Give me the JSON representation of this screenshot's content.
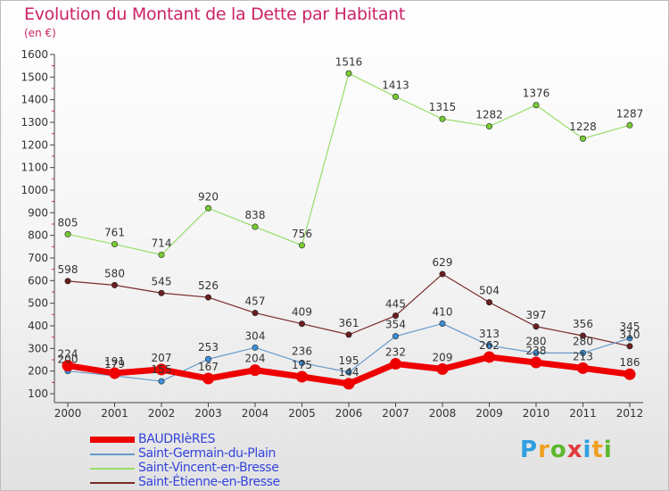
{
  "title": "Evolution du Montant de la Dette par Habitant",
  "subtitle": "(en €)",
  "logo_text": "Proxiti",
  "chart_data": {
    "type": "line",
    "x": [
      2000,
      2001,
      2002,
      2003,
      2004,
      2005,
      2006,
      2007,
      2008,
      2009,
      2010,
      2011,
      2012
    ],
    "ylim": [
      100,
      1600
    ],
    "yticks": [
      100,
      200,
      300,
      400,
      500,
      600,
      700,
      800,
      900,
      1000,
      1100,
      1200,
      1300,
      1400,
      1500,
      1600
    ],
    "grid": "none",
    "legend_position": "bottom-left",
    "series": [
      {
        "name": "BAUDRIèRES",
        "color": "#ee0000",
        "emphasis": true,
        "values": [
          224,
          191,
          207,
          167,
          204,
          175,
          144,
          232,
          209,
          262,
          238,
          213,
          186
        ],
        "labels": [
          "224",
          "191",
          "207",
          "167",
          "204",
          "175",
          "144",
          "232",
          "209",
          "262",
          "238",
          "213",
          "186"
        ]
      },
      {
        "name": "Saint-Germain-du-Plain",
        "color": "#6699cc",
        "marker": "#3a8fd8",
        "values": [
          200,
          179,
          155,
          253,
          304,
          236,
          195,
          354,
          410,
          313,
          280,
          280,
          345
        ],
        "labels": [
          "200",
          "179",
          "155",
          "253",
          "304",
          "236",
          "195",
          "354",
          "410",
          "313",
          "280",
          "280",
          "345"
        ]
      },
      {
        "name": "Saint-Vincent-en-Bresse",
        "color": "#99dd66",
        "marker": "#77cc33",
        "values": [
          805,
          761,
          714,
          920,
          838,
          756,
          1516,
          1413,
          1315,
          1282,
          1376,
          1228,
          1287
        ],
        "labels": [
          "805",
          "761",
          "714",
          "920",
          "838",
          "756",
          "1516",
          "1413",
          "1315",
          "1282",
          "1376",
          "1228",
          "1287"
        ]
      },
      {
        "name": "Saint-Étienne-en-Bresse",
        "color": "#7a2a2a",
        "marker": "#6a1f1f",
        "values": [
          598,
          580,
          545,
          526,
          457,
          409,
          361,
          445,
          629,
          504,
          397,
          356,
          310
        ],
        "labels": [
          "598",
          "580",
          "545",
          "526",
          "457",
          "409",
          "361",
          "445",
          "629",
          "504",
          "397",
          "356",
          "310"
        ]
      }
    ]
  }
}
